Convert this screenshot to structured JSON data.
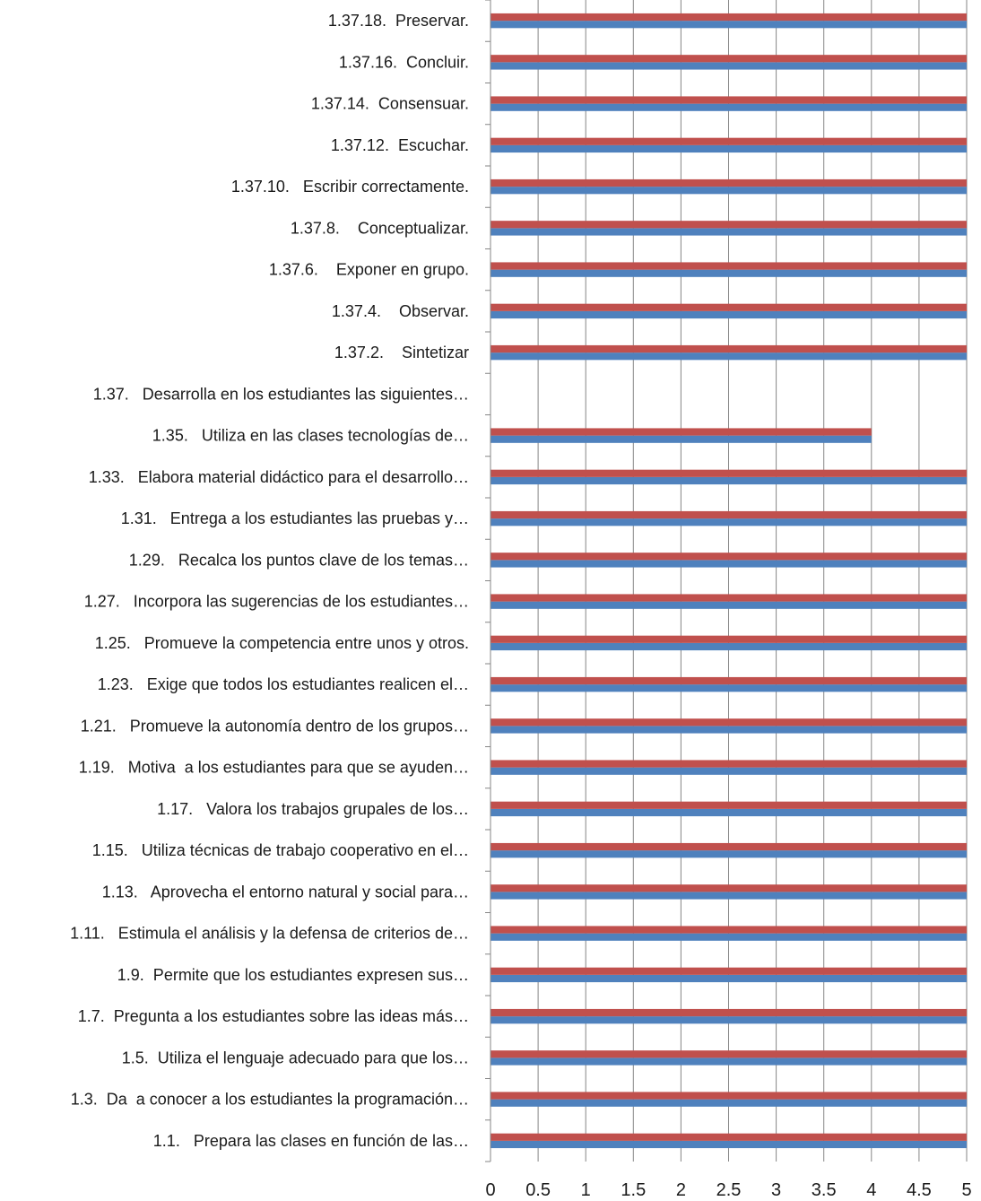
{
  "chart_data": {
    "type": "bar",
    "orientation": "horizontal",
    "title": "",
    "xlabel": "",
    "ylabel": "",
    "xlim": [
      0,
      5
    ],
    "x_ticks": [
      "0",
      "0.5",
      "1",
      "1.5",
      "2",
      "2.5",
      "3",
      "3.5",
      "4",
      "4.5",
      "5"
    ],
    "grid": "vertical",
    "legend": "none",
    "colors": {
      "series_1": "#4f81bd",
      "series_2": "#c0504d",
      "gridline": "#868686"
    },
    "categories": [
      "1.1.   Prepara las clases en función de las…",
      "1.3.  Da  a conocer a los estudiantes la programación…",
      "1.5.  Utiliza el lenguaje adecuado para que los…",
      "1.7.  Pregunta a los estudiantes sobre las ideas más…",
      "1.9.  Permite que los estudiantes expresen sus…",
      "1.11.   Estimula el análisis y la defensa de criterios de…",
      "1.13.   Aprovecha el entorno natural y social para…",
      "1.15.   Utiliza técnicas de trabajo cooperativo en el…",
      "1.17.   Valora los trabajos grupales de los…",
      "1.19.   Motiva  a los estudiantes para que se ayuden…",
      "1.21.   Promueve la autonomía dentro de los grupos…",
      "1.23.   Exige que todos los estudiantes realicen el…",
      "1.25.   Promueve la competencia entre unos y otros.",
      "1.27.   Incorpora las sugerencias de los estudiantes…",
      "1.29.   Recalca los puntos clave de los temas…",
      "1.31.   Entrega a los estudiantes las pruebas y…",
      "1.33.   Elabora material didáctico para el desarrollo…",
      "1.35.   Utiliza en las clases tecnologías de…",
      "1.37.   Desarrolla en los estudiantes las siguientes…",
      "1.37.2.    Sintetizar",
      "1.37.4.    Observar.",
      "1.37.6.    Exponer en grupo.",
      "1.37.8.    Conceptualizar.",
      "1.37.10.   Escribir correctamente.",
      "1.37.12.  Escuchar.",
      "1.37.14.  Consensuar.",
      "1.37.16.  Concluir.",
      "1.37.18.  Preservar."
    ],
    "series": [
      {
        "values": [
          5,
          5,
          5,
          5,
          5,
          5,
          5,
          5,
          5,
          5,
          5,
          5,
          5,
          5,
          5,
          5,
          5,
          4,
          0,
          5,
          5,
          5,
          5,
          5,
          5,
          5,
          5,
          5
        ]
      },
      {
        "values": [
          5,
          5,
          5,
          5,
          5,
          5,
          5,
          5,
          5,
          5,
          5,
          5,
          5,
          5,
          5,
          5,
          5,
          4,
          0,
          5,
          5,
          5,
          5,
          5,
          5,
          5,
          5,
          5
        ]
      }
    ]
  }
}
